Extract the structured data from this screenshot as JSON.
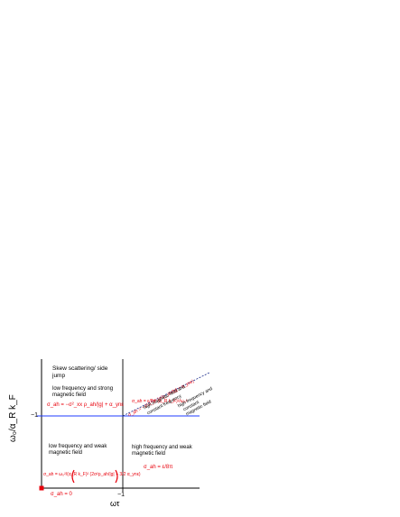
{
  "axes": {
    "y_label": "ω₀/α_R k_F",
    "x_label": "ωτ",
    "y_tick": "−1",
    "x_tick": "−1"
  },
  "regions": {
    "top_left_title": "Skew scattering/ side jump",
    "top_left_desc": "low frequency and strong magnetic field",
    "top_left_formula": "σ_ah = −σ²_xx ρ_ah/|g| + α_ynε",
    "bottom_left_desc": "low frequency and weak magnetic field",
    "bottom_left_formula": "σ_ah = ω₀²/(α_R k_F)² (2σ²ρ_ah/|g| + 3/2 α_ynε)",
    "origin_formula": "σ_ah = 0",
    "top_right_formula_1": "σ_ah = −1/ω_1² (σ²ρ_ah/|g| + α_ynε)",
    "top_right_formula_2": "σ_ah = ε/8π (α_R k_F)²/ω₀²",
    "bottom_right_desc": "high frequency and weak magnetic field",
    "bottom_right_formula": "σ_ah = ε/8π",
    "diag_label_1": "high magnetic field and",
    "diag_label_2": "constant frequency",
    "diag_label_3": "high frequency and",
    "diag_label_4": "constant",
    "diag_label_5": "magnetic field"
  },
  "colors": {
    "axis": "#000000",
    "blue_line": "#1f3bff",
    "formula": "#e8000b",
    "diagonal": "#1a2a8a"
  }
}
